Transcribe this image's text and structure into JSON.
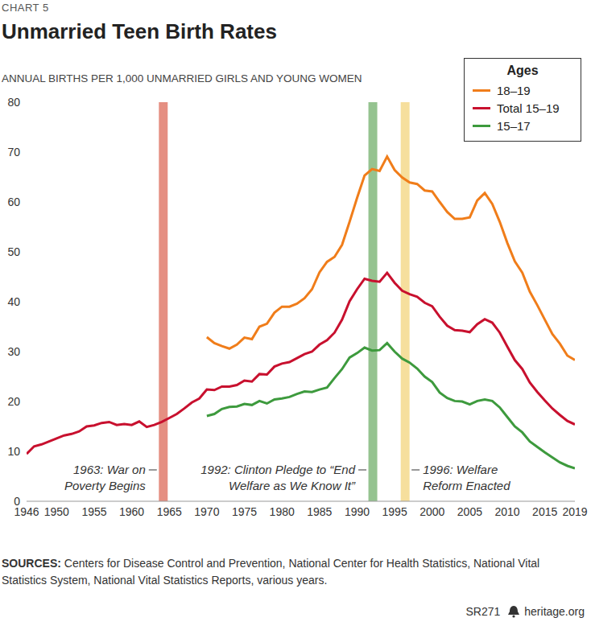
{
  "chart_data": {
    "type": "line",
    "chart_label": "CHART 5",
    "title": "Unmarried Teen Birth Rates",
    "subtitle": "ANNUAL BIRTHS PER 1,000 UNMARRIED GIRLS AND YOUNG WOMEN",
    "legend_title": "Ages",
    "legend": "top-right",
    "grid": false,
    "x": [
      1946,
      1947,
      1948,
      1949,
      1950,
      1951,
      1952,
      1953,
      1954,
      1955,
      1956,
      1957,
      1958,
      1959,
      1960,
      1961,
      1962,
      1963,
      1964,
      1965,
      1966,
      1967,
      1968,
      1969,
      1970,
      1971,
      1972,
      1973,
      1974,
      1975,
      1976,
      1977,
      1978,
      1979,
      1980,
      1981,
      1982,
      1983,
      1984,
      1985,
      1986,
      1987,
      1988,
      1989,
      1990,
      1991,
      1992,
      1993,
      1994,
      1995,
      1996,
      1997,
      1998,
      1999,
      2000,
      2001,
      2002,
      2003,
      2004,
      2005,
      2006,
      2007,
      2008,
      2009,
      2010,
      2011,
      2012,
      2013,
      2014,
      2015,
      2016,
      2017,
      2018,
      2019
    ],
    "xlim": [
      1946,
      2019
    ],
    "xticks": [
      1946,
      1950,
      1955,
      1960,
      1965,
      1970,
      1975,
      1980,
      1985,
      1990,
      1995,
      2000,
      2005,
      2010,
      2015,
      2019
    ],
    "ylim": [
      0,
      80
    ],
    "yticks": [
      0,
      10,
      20,
      30,
      40,
      50,
      60,
      70,
      80
    ],
    "series": [
      {
        "name": "18–19",
        "color": "#f07d1a",
        "values": [
          null,
          null,
          null,
          null,
          null,
          null,
          null,
          null,
          null,
          null,
          null,
          null,
          null,
          null,
          null,
          null,
          null,
          null,
          null,
          null,
          null,
          null,
          null,
          null,
          32.9,
          31.7,
          31.1,
          30.6,
          31.4,
          32.8,
          32.5,
          35,
          35.6,
          37.8,
          39,
          39,
          39.6,
          40.7,
          42.5,
          45.9,
          48,
          49,
          51.4,
          56,
          60.8,
          65.3,
          66.6,
          66.2,
          69.1,
          66.4,
          64.9,
          63.9,
          63.6,
          62.3,
          62.1,
          60,
          58,
          56.6,
          56.6,
          56.9,
          60.3,
          61.8,
          59.6,
          56,
          51.8,
          48.1,
          45.8,
          42,
          39.3,
          36.4,
          33.5,
          31.6,
          29.2,
          28.3
        ]
      },
      {
        "name": "Total 15–19",
        "color": "#c8102e",
        "values": [
          9.5,
          11,
          11.4,
          12,
          12.6,
          13.2,
          13.5,
          14,
          15,
          15.2,
          15.7,
          15.9,
          15.3,
          15.5,
          15.3,
          16,
          14.9,
          15.3,
          15.9,
          16.7,
          17.5,
          18.6,
          19.8,
          20.6,
          22.4,
          22.3,
          23,
          23,
          23.3,
          24.2,
          24,
          25.5,
          25.4,
          27,
          27.6,
          27.9,
          28.7,
          29.5,
          30,
          31.4,
          32.3,
          33.8,
          36.4,
          40.1,
          42.5,
          44.6,
          44.2,
          44,
          45.8,
          43.8,
          42.2,
          41.5,
          41,
          39.8,
          39.1,
          37,
          35.2,
          34.3,
          34.2,
          33.9,
          35.5,
          36.5,
          35.8,
          33.8,
          31,
          28.3,
          26.5,
          23.8,
          21.9,
          20.2,
          18.6,
          17.3,
          16.1,
          15.4
        ]
      },
      {
        "name": "15–17",
        "color": "#3d9a3d",
        "values": [
          null,
          null,
          null,
          null,
          null,
          null,
          null,
          null,
          null,
          null,
          null,
          null,
          null,
          null,
          null,
          null,
          null,
          null,
          null,
          null,
          null,
          null,
          null,
          null,
          17.1,
          17.5,
          18.5,
          18.9,
          19,
          19.5,
          19.3,
          20.1,
          19.6,
          20.4,
          20.6,
          20.9,
          21.5,
          22,
          21.9,
          22.4,
          22.8,
          24.7,
          26.5,
          28.8,
          29.7,
          30.8,
          30.2,
          30.3,
          31.7,
          30,
          28.6,
          27.8,
          26.6,
          25,
          23.9,
          21.8,
          20.7,
          20.1,
          20,
          19.4,
          20.1,
          20.4,
          20.1,
          18.8,
          16.9,
          15,
          13.8,
          12,
          10.9,
          9.8,
          8.8,
          7.8,
          7.1,
          6.6
        ]
      }
    ],
    "annotations": [
      {
        "text": [
          "1963: War on",
          "Poverty Begins"
        ],
        "x": 1964.2,
        "color": "#e07b6c"
      },
      {
        "text": [
          "1992: Clinton Pledge to “End",
          "Welfare as We Know It”"
        ],
        "x": 1992.1,
        "color": "#82b97c"
      },
      {
        "text": [
          "1996: Welfare",
          "Reform Enacted"
        ],
        "x": 1996.4,
        "color": "#f5d98c"
      }
    ],
    "source_label": "SOURCES:",
    "source_text": "Centers for Disease Control and Prevention, National Center for Health Statistics, National Vital Statistics System, National Vital Statistics Reports, various years.",
    "report_id": "SR271",
    "site": "heritage.org"
  }
}
